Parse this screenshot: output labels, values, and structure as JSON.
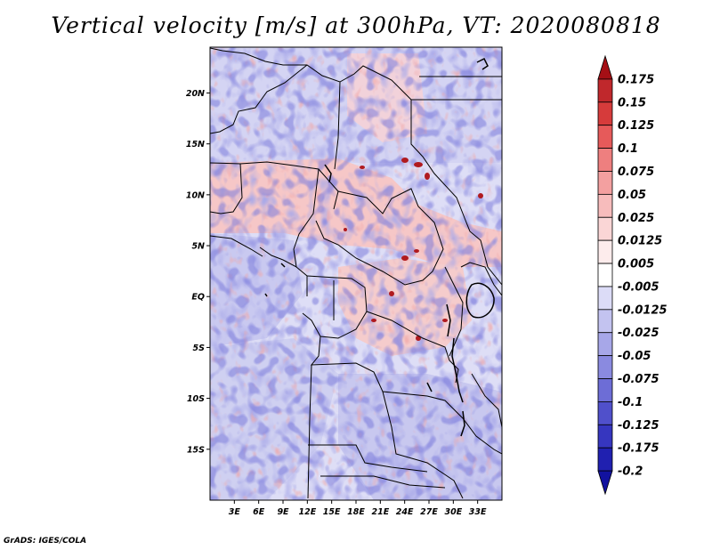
{
  "title": "Vertical velocity [m/s] at 300hPa, VT: 2020080818",
  "credit": "GrADS: IGES/COLA",
  "map": {
    "lon_range": [
      0,
      36
    ],
    "lat_range": [
      -20,
      24.5
    ],
    "lon_ticks": [
      "3E",
      "6E",
      "9E",
      "12E",
      "15E",
      "18E",
      "21E",
      "24E",
      "27E",
      "30E",
      "33E"
    ],
    "lat_ticks": [
      "20N",
      "15N",
      "10N",
      "5N",
      "EQ",
      "5S",
      "10S",
      "15S"
    ]
  },
  "colorbar": {
    "labels": [
      "0.175",
      "0.15",
      "0.125",
      "0.1",
      "0.075",
      "0.05",
      "0.025",
      "0.0125",
      "0.005",
      "-0.005",
      "-0.0125",
      "-0.025",
      "-0.05",
      "-0.075",
      "-0.1",
      "-0.125",
      "-0.175",
      "-0.2"
    ],
    "colors": [
      "#a50f15",
      "#c0282c",
      "#d63b3b",
      "#e65a5a",
      "#ee7f7f",
      "#f3a0a0",
      "#f7bcbc",
      "#fad6d6",
      "#fdecec",
      "#ffffff",
      "#dcdcf7",
      "#c3c3f0",
      "#a7a7e8",
      "#8a8ae0",
      "#6d6dd6",
      "#5050cb",
      "#3636bf",
      "#2020b0",
      "#1212a0"
    ]
  }
}
